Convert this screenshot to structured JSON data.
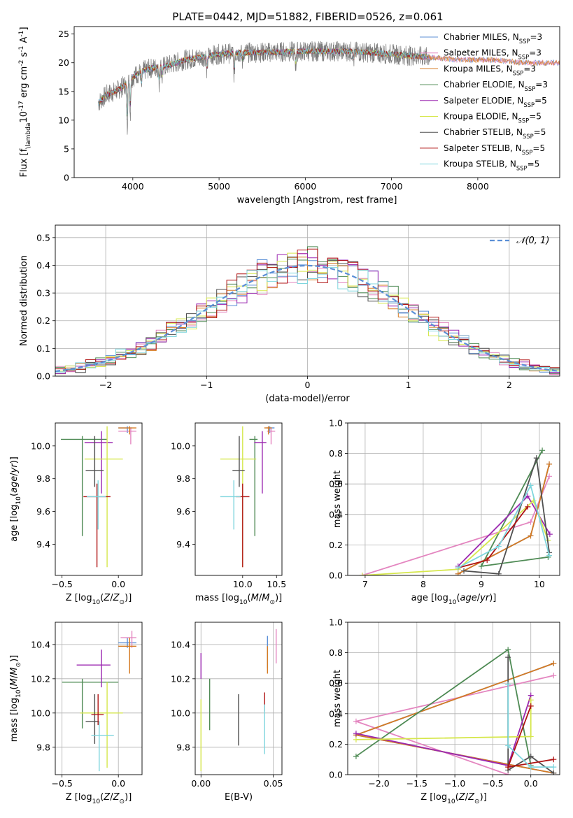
{
  "figure": {
    "title": "PLATE=0442, MJD=51882, FIBERID=0526, z=0.061",
    "colors": {
      "Chabrier MILES": "#5b8fd6",
      "Salpeter MILES": "#e486c0",
      "Kroupa MILES": "#d57a22",
      "Chabrier ELODIE": "#4f8b55",
      "Salpeter ELODIE": "#9b27b0",
      "Kroupa ELODIE": "#d6e74c",
      "Chabrier STELIB": "#505050",
      "Salpeter STELIB": "#b01414",
      "Kroupa STELIB": "#7fd6de"
    }
  },
  "chart_data": [
    {
      "id": "spectrum",
      "type": "line",
      "xlabel": "wavelength [Angstrom, rest frame]",
      "ylabel": "Flux [f$_\\lambda$10$^{-17}$ erg cm$^{-2}$ s$^{-1}$ A$^{-1}$]",
      "xlim": [
        3320,
        8950
      ],
      "ylim": [
        0,
        26.3
      ],
      "xticks": [
        4000,
        5000,
        6000,
        7000,
        8000
      ],
      "yticks": [
        0,
        5,
        10,
        15,
        20,
        25
      ],
      "grid": false,
      "legend_position": "right",
      "series": [
        {
          "name": "Chabrier MILES, N_SSP=3",
          "label_main": "Chabrier MILES, N",
          "label_sub": "SSP",
          "label_tail": "=3"
        },
        {
          "name": "Salpeter MILES, N_SSP=3",
          "label_main": "Salpeter MILES, N",
          "label_sub": "SSP",
          "label_tail": "=3"
        },
        {
          "name": "Kroupa MILES, N_SSP=3",
          "label_main": "Kroupa MILES, N",
          "label_sub": "SSP",
          "label_tail": "=3"
        },
        {
          "name": "Chabrier ELODIE, N_SSP=3",
          "label_main": "Chabrier ELODIE, N",
          "label_sub": "SSP",
          "label_tail": "=3"
        },
        {
          "name": "Salpeter ELODIE, N_SSP=5",
          "label_main": "Salpeter ELODIE, N",
          "label_sub": "SSP",
          "label_tail": "=5"
        },
        {
          "name": "Kroupa ELODIE, N_SSP=5",
          "label_main": "Kroupa ELODIE, N",
          "label_sub": "SSP",
          "label_tail": "=5"
        },
        {
          "name": "Chabrier STELIB, N_SSP=5",
          "label_main": "Chabrier STELIB, N",
          "label_sub": "SSP",
          "label_tail": "=5"
        },
        {
          "name": "Salpeter STELIB, N_SSP=5",
          "label_main": "Salpeter STELIB, N",
          "label_sub": "SSP",
          "label_tail": "=5"
        },
        {
          "name": "Kroupa STELIB, N_SSP=5",
          "label_main": "Kroupa STELIB, N",
          "label_sub": "SSP",
          "label_tail": "=5"
        }
      ],
      "continuum": [
        [
          3600,
          13
        ],
        [
          3700,
          14.5
        ],
        [
          3800,
          15
        ],
        [
          3900,
          16
        ],
        [
          4000,
          17.5
        ],
        [
          4100,
          18.5
        ],
        [
          4200,
          19
        ],
        [
          4400,
          19.5
        ],
        [
          4600,
          20.5
        ],
        [
          4800,
          21
        ],
        [
          5000,
          21.5
        ],
        [
          5200,
          21.7
        ],
        [
          5500,
          21.8
        ],
        [
          6000,
          22
        ],
        [
          6500,
          22
        ],
        [
          7000,
          21.5
        ],
        [
          7400,
          21
        ],
        [
          7800,
          20.5
        ],
        [
          8200,
          20.5
        ],
        [
          8500,
          20
        ]
      ],
      "absorption_dips": [
        [
          3935,
          8
        ],
        [
          3970,
          6
        ],
        [
          4101,
          3
        ],
        [
          4305,
          3
        ],
        [
          4341,
          2
        ],
        [
          4861,
          3
        ],
        [
          5175,
          4
        ],
        [
          5270,
          1.5
        ],
        [
          5890,
          2.5
        ],
        [
          6563,
          1.5
        ]
      ],
      "observed_range": [
        3600,
        7450
      ],
      "noise_amplitude": 1.8
    },
    {
      "id": "residuals",
      "type": "histogram",
      "xlabel": "(data-model)/error",
      "ylabel": "Normed distribution",
      "xlim": [
        -2.5,
        2.5
      ],
      "ylim": [
        0,
        0.545
      ],
      "xticks": [
        -2,
        -1,
        0,
        1,
        2
      ],
      "yticks": [
        0.0,
        0.1,
        0.2,
        0.3,
        0.4,
        0.5
      ],
      "grid": true,
      "bin_width": 0.1,
      "reference": {
        "name": "𝒩(0, 1)",
        "style": "dashed",
        "color": "#5b8fd6"
      },
      "legend_position": "top-right"
    },
    {
      "id": "age_vs_Z",
      "type": "errorbar",
      "xlabel": "Z [log10(Z/Z⊙)]",
      "ylabel": "age [log10(age/yr)]",
      "xlim": [
        -0.56,
        0.21
      ],
      "ylim": [
        9.21,
        10.14
      ],
      "xticks": [
        -0.5,
        0.0
      ],
      "yticks": [
        9.4,
        9.6,
        9.8,
        10.0
      ],
      "grid": false,
      "points": [
        {
          "model": "Chabrier MILES",
          "x": 0.08,
          "y": 10.11,
          "xerr": [
            0.08,
            0.04
          ],
          "yerr": [
            0.03,
            0.01
          ]
        },
        {
          "model": "Salpeter MILES",
          "x": 0.11,
          "y": 10.09,
          "xerr": [
            0.11,
            0.05
          ],
          "yerr": [
            0.08,
            0.02
          ]
        },
        {
          "model": "Kroupa MILES",
          "x": 0.1,
          "y": 10.11,
          "xerr": [
            0.1,
            0.06
          ],
          "yerr": [
            0.04,
            0.01
          ]
        },
        {
          "model": "Chabrier ELODIE",
          "x": -0.32,
          "y": 10.04,
          "xerr": [
            0.19,
            0.22
          ],
          "yerr": [
            0.59,
            0.02
          ]
        },
        {
          "model": "Salpeter ELODIE",
          "x": -0.15,
          "y": 10.02,
          "xerr": [
            0.15,
            0.1
          ],
          "yerr": [
            0.31,
            0.07
          ]
        },
        {
          "model": "Kroupa ELODIE",
          "x": -0.1,
          "y": 9.92,
          "xerr": [
            0.2,
            0.14
          ],
          "yerr": [
            0.66,
            0.2
          ]
        },
        {
          "model": "Chabrier STELIB",
          "x": -0.21,
          "y": 9.85,
          "xerr": [
            0.08,
            0.08
          ],
          "yerr": [
            0.1,
            0.21
          ]
        },
        {
          "model": "Salpeter STELIB",
          "x": -0.19,
          "y": 9.69,
          "xerr": [
            0.12,
            0.12
          ],
          "yerr": [
            0.43,
            0.08
          ]
        },
        {
          "model": "Kroupa STELIB",
          "x": -0.18,
          "y": 9.69,
          "xerr": [
            0.1,
            0.07
          ],
          "yerr": [
            0.2,
            0.1
          ]
        }
      ]
    },
    {
      "id": "age_vs_mass",
      "type": "errorbar",
      "xlabel": "mass [log10(M/M⊙)]",
      "ylabel": "",
      "xlim": [
        9.3,
        10.58
      ],
      "ylim": [
        9.21,
        10.14
      ],
      "xticks": [
        10.0,
        10.5
      ],
      "yticks": [
        9.4,
        9.6,
        9.8,
        10.0
      ],
      "grid": false,
      "points": [
        {
          "model": "Chabrier MILES",
          "x": 10.4,
          "y": 10.11,
          "xerr": [
            0.05,
            0.07
          ],
          "yerr": [
            0.03,
            0.01
          ]
        },
        {
          "model": "Salpeter MILES",
          "x": 10.42,
          "y": 10.09,
          "xerr": [
            0.06,
            0.06
          ],
          "yerr": [
            0.08,
            0.02
          ]
        },
        {
          "model": "Kroupa MILES",
          "x": 10.38,
          "y": 10.11,
          "xerr": [
            0.06,
            0.05
          ],
          "yerr": [
            0.04,
            0.01
          ]
        },
        {
          "model": "Chabrier ELODIE",
          "x": 10.18,
          "y": 10.04,
          "xerr": [
            0.08,
            0.04
          ],
          "yerr": [
            0.59,
            0.02
          ]
        },
        {
          "model": "Salpeter ELODIE",
          "x": 10.29,
          "y": 10.02,
          "xerr": [
            0.12,
            0.06
          ],
          "yerr": [
            0.31,
            0.07
          ]
        },
        {
          "model": "Kroupa ELODIE",
          "x": 10.0,
          "y": 9.92,
          "xerr": [
            0.33,
            0.2
          ],
          "yerr": [
            0.66,
            0.2
          ]
        },
        {
          "model": "Chabrier STELIB",
          "x": 9.95,
          "y": 9.85,
          "xerr": [
            0.1,
            0.08
          ],
          "yerr": [
            0.1,
            0.21
          ]
        },
        {
          "model": "Salpeter STELIB",
          "x": 10.0,
          "y": 9.69,
          "xerr": [
            0.1,
            0.1
          ],
          "yerr": [
            0.43,
            0.08
          ]
        },
        {
          "model": "Kroupa STELIB",
          "x": 9.87,
          "y": 9.69,
          "xerr": [
            0.2,
            0.1
          ],
          "yerr": [
            0.2,
            0.1
          ]
        }
      ]
    },
    {
      "id": "weight_vs_age",
      "type": "line",
      "xlabel": "age [log10(age/yr)]",
      "ylabel": "mass weight",
      "xlim": [
        6.7,
        10.35
      ],
      "ylim": [
        0,
        1.0
      ],
      "xticks": [
        7,
        8,
        9,
        10
      ],
      "yticks": [
        0.0,
        0.2,
        0.4,
        0.6,
        0.8,
        1.0
      ],
      "grid": true,
      "series": [
        {
          "model": "Chabrier MILES",
          "x": [
            8.6,
            9.85,
            10.17
          ],
          "y": [
            0.01,
            0.26,
            0.73
          ]
        },
        {
          "model": "Salpeter MILES",
          "x": [
            6.95,
            9.85,
            10.17
          ],
          "y": [
            0.0,
            0.35,
            0.65
          ]
        },
        {
          "model": "Kroupa MILES",
          "x": [
            8.6,
            9.85,
            10.17
          ],
          "y": [
            0.01,
            0.26,
            0.73
          ]
        },
        {
          "model": "Chabrier ELODIE",
          "x": [
            10.15,
            9.0,
            10.05
          ],
          "y": [
            0.12,
            0.06,
            0.82
          ]
        },
        {
          "model": "Salpeter ELODIE",
          "x": [
            8.6,
            9.8,
            10.18
          ],
          "y": [
            0.06,
            0.52,
            0.27
          ]
        },
        {
          "model": "Kroupa ELODIE",
          "x": [
            6.95,
            8.6,
            9.9,
            10.15
          ],
          "y": [
            0.0,
            0.04,
            0.49,
            0.23
          ]
        },
        {
          "model": "Chabrier STELIB",
          "x": [
            8.7,
            9.3,
            9.95,
            10.17
          ],
          "y": [
            0.03,
            0.01,
            0.77,
            0.15
          ]
        },
        {
          "model": "Salpeter STELIB",
          "x": [
            8.6,
            9.1,
            9.8
          ],
          "y": [
            0.05,
            0.1,
            0.45
          ]
        },
        {
          "model": "Kroupa STELIB",
          "x": [
            8.6,
            9.3,
            9.85,
            10.17
          ],
          "y": [
            0.05,
            0.19,
            0.59,
            0.13
          ]
        }
      ]
    },
    {
      "id": "mass_vs_Z",
      "type": "errorbar",
      "xlabel": "Z [log10(Z/Z⊙)]",
      "ylabel": "mass [log10(M/M⊙)]",
      "xlim": [
        -0.56,
        0.21
      ],
      "ylim": [
        9.64,
        10.53
      ],
      "xticks": [
        -0.5,
        0.0
      ],
      "yticks": [
        9.8,
        10.0,
        10.2,
        10.4
      ],
      "grid": true,
      "points": [
        {
          "model": "Chabrier MILES",
          "x": 0.08,
          "y": 10.41,
          "xerr": [
            0.08,
            0.08
          ],
          "yerr": [
            0.03,
            0.03
          ]
        },
        {
          "model": "Salpeter MILES",
          "x": 0.12,
          "y": 10.44,
          "xerr": [
            0.1,
            0.04
          ],
          "yerr": [
            0.06,
            0.04
          ]
        },
        {
          "model": "Kroupa MILES",
          "x": 0.1,
          "y": 10.39,
          "xerr": [
            0.1,
            0.06
          ],
          "yerr": [
            0.16,
            0.05
          ]
        },
        {
          "model": "Chabrier ELODIE",
          "x": -0.32,
          "y": 10.18,
          "xerr": [
            0.18,
            0.32
          ],
          "yerr": [
            0.27,
            0.02
          ]
        },
        {
          "model": "Salpeter ELODIE",
          "x": -0.15,
          "y": 10.28,
          "xerr": [
            0.22,
            0.08
          ],
          "yerr": [
            0.13,
            0.09
          ]
        },
        {
          "model": "Kroupa ELODIE",
          "x": -0.1,
          "y": 10.0,
          "xerr": [
            0.24,
            0.14
          ],
          "yerr": [
            0.32,
            0.18
          ]
        },
        {
          "model": "Chabrier STELIB",
          "x": -0.21,
          "y": 9.95,
          "xerr": [
            0.08,
            0.04
          ],
          "yerr": [
            0.13,
            0.16
          ]
        },
        {
          "model": "Salpeter STELIB",
          "x": -0.18,
          "y": 9.99,
          "xerr": [
            0.06,
            0.05
          ],
          "yerr": [
            0.06,
            0.12
          ]
        },
        {
          "model": "Kroupa STELIB",
          "x": -0.17,
          "y": 9.87,
          "xerr": [
            0.07,
            0.13
          ],
          "yerr": [
            0.21,
            0.08
          ]
        }
      ]
    },
    {
      "id": "mass_vs_ebv",
      "type": "errorbar",
      "xlabel": "E(B-V)",
      "ylabel": "",
      "xlim": [
        -0.004,
        0.056
      ],
      "ylim": [
        9.64,
        10.53
      ],
      "xticks": [
        0.0,
        0.05
      ],
      "yticks": [
        9.8,
        10.0,
        10.2,
        10.4
      ],
      "grid": true,
      "points": [
        {
          "model": "Chabrier MILES",
          "x": 0.046,
          "y": 10.34,
          "yerr": [
            0.08,
            0.11
          ]
        },
        {
          "model": "Salpeter MILES",
          "x": 0.052,
          "y": 10.38,
          "yerr": [
            0.09,
            0.11
          ]
        },
        {
          "model": "Kroupa MILES",
          "x": 0.046,
          "y": 10.31,
          "yerr": [
            0.08,
            0.08
          ]
        },
        {
          "model": "Chabrier ELODIE",
          "x": 0.006,
          "y": 10.05,
          "yerr": [
            0.15,
            0.15
          ]
        },
        {
          "model": "Salpeter ELODIE",
          "x": 0.0,
          "y": 10.25,
          "yerr": [
            0.05,
            0.1
          ]
        },
        {
          "model": "Kroupa ELODIE",
          "x": 0.0,
          "y": 9.96,
          "yerr": [
            0.3,
            0.12
          ]
        },
        {
          "model": "Chabrier STELIB",
          "x": 0.026,
          "y": 9.96,
          "yerr": [
            0.15,
            0.15
          ]
        },
        {
          "model": "Salpeter STELIB",
          "x": 0.044,
          "y": 10.07,
          "yerr": [
            0.06,
            0.05
          ]
        },
        {
          "model": "Kroupa STELIB",
          "x": 0.044,
          "y": 9.9,
          "yerr": [
            0.14,
            0.15
          ]
        }
      ]
    },
    {
      "id": "weight_vs_Z",
      "type": "line",
      "xlabel": "Z [log10(Z/Z⊙)]",
      "ylabel": "mass weight",
      "xlim": [
        -2.41,
        0.38
      ],
      "ylim": [
        0,
        1.0
      ],
      "xticks": [
        -2.0,
        -1.5,
        -1.0,
        -0.5,
        0.0
      ],
      "yticks": [
        0.0,
        0.2,
        0.4,
        0.6,
        0.8,
        1.0
      ],
      "grid": true,
      "series": [
        {
          "model": "Chabrier MILES",
          "x": [
            0.3,
            -2.3,
            0.3
          ],
          "y": [
            0.01,
            0.26,
            0.73
          ]
        },
        {
          "model": "Salpeter MILES",
          "x": [
            -0.3,
            -2.3,
            0.3
          ],
          "y": [
            0.0,
            0.35,
            0.65
          ]
        },
        {
          "model": "Kroupa MILES",
          "x": [
            0.3,
            -2.3,
            0.3
          ],
          "y": [
            0.01,
            0.26,
            0.73
          ]
        },
        {
          "model": "Chabrier ELODIE",
          "x": [
            -2.3,
            -0.3,
            0.0
          ],
          "y": [
            0.12,
            0.82,
            0.06
          ]
        },
        {
          "model": "Salpeter ELODIE",
          "x": [
            -2.3,
            -0.3,
            0.0
          ],
          "y": [
            0.27,
            0.06,
            0.52
          ]
        },
        {
          "model": "Kroupa ELODIE",
          "x": [
            -2.3,
            0.0,
            0.0
          ],
          "y": [
            0.23,
            0.25,
            0.49
          ]
        },
        {
          "model": "Chabrier STELIB",
          "x": [
            -0.3,
            -0.3,
            0.0,
            0.3
          ],
          "y": [
            0.77,
            0.03,
            0.12,
            0.01
          ]
        },
        {
          "model": "Salpeter STELIB",
          "x": [
            0.0,
            -0.3,
            0.3
          ],
          "y": [
            0.45,
            0.05,
            0.1
          ]
        },
        {
          "model": "Kroupa STELIB",
          "x": [
            -0.3,
            -0.3,
            0.0,
            0.3
          ],
          "y": [
            0.59,
            0.19,
            0.05,
            0.05
          ]
        }
      ]
    }
  ]
}
